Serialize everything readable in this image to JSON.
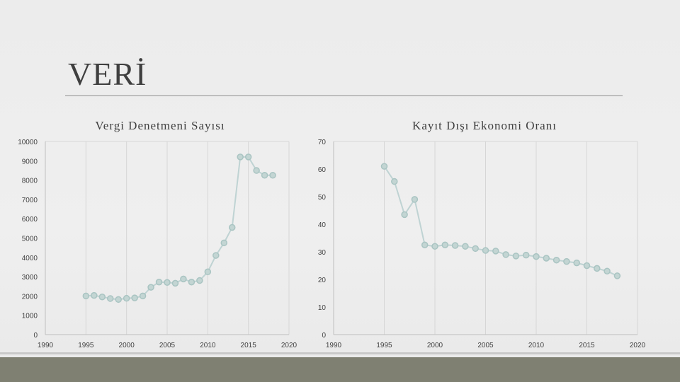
{
  "slide": {
    "title": "VERİ"
  },
  "chart_data": [
    {
      "type": "line",
      "title": "Vergi Denetmeni Sayısı",
      "xlabel": "",
      "ylabel": "",
      "xlim": [
        1990,
        2020
      ],
      "ylim": [
        0,
        10000
      ],
      "xticks": [
        1990,
        1995,
        2000,
        2005,
        2010,
        2015,
        2020
      ],
      "yticks": [
        0,
        1000,
        2000,
        3000,
        4000,
        5000,
        6000,
        7000,
        8000,
        9000,
        10000
      ],
      "grid": true,
      "series": [
        {
          "x": [
            1995,
            1996,
            1997,
            1998,
            1999,
            2000,
            2001,
            2002,
            2003,
            2004,
            2005,
            2006,
            2007,
            2008,
            2009,
            2010,
            2011,
            2012,
            2013,
            2014,
            2015,
            2016,
            2017,
            2018
          ],
          "y": [
            2000,
            2030,
            1950,
            1870,
            1820,
            1880,
            1900,
            2000,
            2450,
            2720,
            2700,
            2660,
            2880,
            2720,
            2800,
            3250,
            4100,
            4750,
            5550,
            9200,
            9200,
            8500,
            8250,
            8250
          ],
          "color": "#bfd3d3"
        }
      ]
    },
    {
      "type": "line",
      "title": "Kayıt Dışı Ekonomi Oranı",
      "xlabel": "",
      "ylabel": "",
      "xlim": [
        1990,
        2020
      ],
      "ylim": [
        0,
        70
      ],
      "xticks": [
        1990,
        1995,
        2000,
        2005,
        2010,
        2015,
        2020
      ],
      "yticks": [
        0,
        10,
        20,
        30,
        40,
        50,
        60,
        70
      ],
      "grid": true,
      "series": [
        {
          "x": [
            1995,
            1996,
            1997,
            1998,
            1999,
            2000,
            2001,
            2002,
            2003,
            2004,
            2005,
            2006,
            2007,
            2008,
            2009,
            2010,
            2011,
            2012,
            2013,
            2014,
            2015,
            2016,
            2017,
            2018
          ],
          "y": [
            61.0,
            55.5,
            43.5,
            49.0,
            32.5,
            32.0,
            32.5,
            32.3,
            32.0,
            31.2,
            30.5,
            30.3,
            29.0,
            28.5,
            28.8,
            28.3,
            27.7,
            27.0,
            26.5,
            26.0,
            25.0,
            24.0,
            23.0,
            21.3
          ],
          "color": "#bfd3d3"
        }
      ]
    }
  ]
}
